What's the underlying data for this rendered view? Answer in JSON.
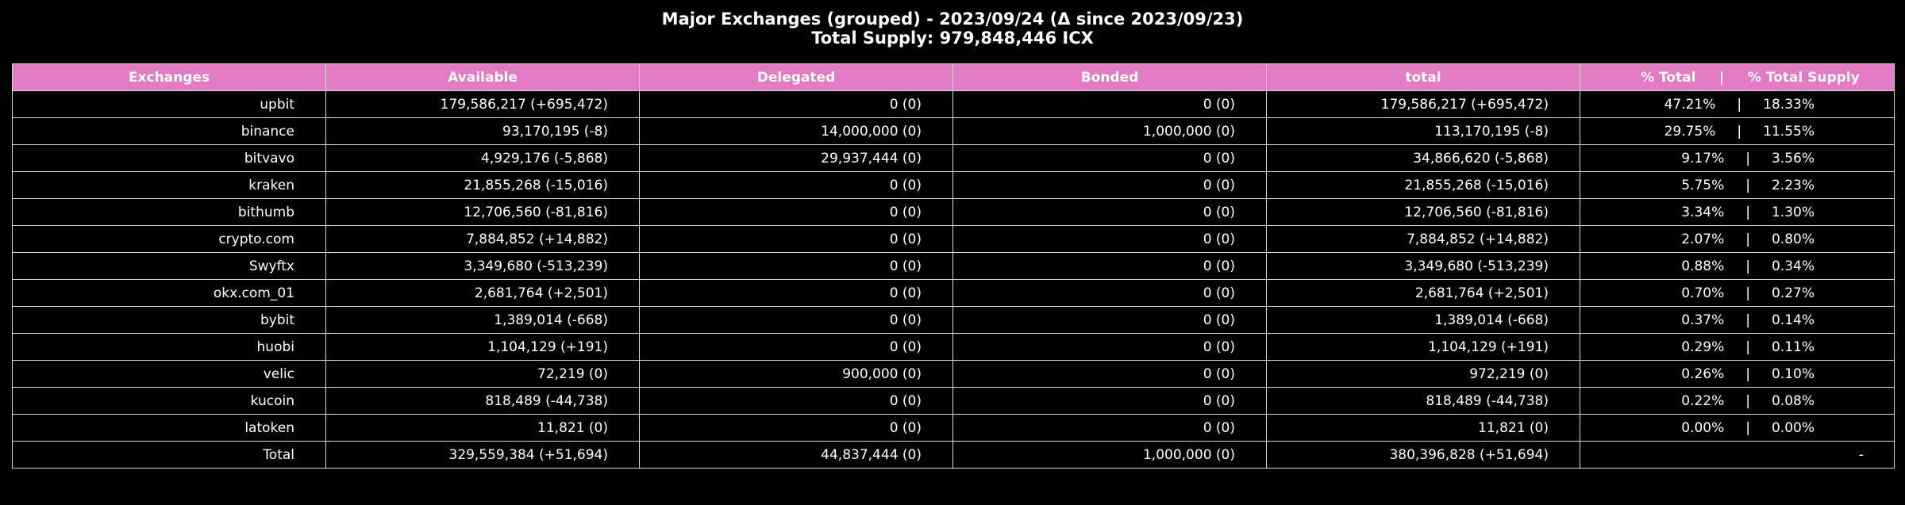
{
  "title": {
    "line1": "Major Exchanges (grouped) - 2023/09/24 (Δ since 2023/09/23)",
    "line2": "Total Supply: 979,848,446 ICX"
  },
  "colors": {
    "header_background": "#e37ac4",
    "background": "#000000",
    "text": "#ffffff",
    "grid_lines": "#d9d9d9"
  },
  "table": {
    "headers": {
      "exchanges": "Exchanges",
      "available": "Available",
      "delegated": "Delegated",
      "bonded": "Bonded",
      "total": "total",
      "percent": "% Total     |     % Total Supply"
    },
    "rows": [
      {
        "exchange": "upbit",
        "available": "179,586,217 (+695,472)",
        "delegated": "0 (0)",
        "bonded": "0 (0)",
        "total": "179,586,217 (+695,472)",
        "percent": "47.21%     |     18.33%"
      },
      {
        "exchange": "binance",
        "available": "93,170,195 (-8)",
        "delegated": "14,000,000 (0)",
        "bonded": "1,000,000 (0)",
        "total": "113,170,195 (-8)",
        "percent": "29.75%     |     11.55%"
      },
      {
        "exchange": "bitvavo",
        "available": "4,929,176 (-5,868)",
        "delegated": "29,937,444 (0)",
        "bonded": "0 (0)",
        "total": "34,866,620 (-5,868)",
        "percent": "9.17%     |     3.56%"
      },
      {
        "exchange": "kraken",
        "available": "21,855,268 (-15,016)",
        "delegated": "0 (0)",
        "bonded": "0 (0)",
        "total": "21,855,268 (-15,016)",
        "percent": "5.75%     |     2.23%"
      },
      {
        "exchange": "bithumb",
        "available": "12,706,560 (-81,816)",
        "delegated": "0 (0)",
        "bonded": "0 (0)",
        "total": "12,706,560 (-81,816)",
        "percent": "3.34%     |     1.30%"
      },
      {
        "exchange": "crypto.com",
        "available": "7,884,852 (+14,882)",
        "delegated": "0 (0)",
        "bonded": "0 (0)",
        "total": "7,884,852 (+14,882)",
        "percent": "2.07%     |     0.80%"
      },
      {
        "exchange": "Swyftx",
        "available": "3,349,680 (-513,239)",
        "delegated": "0 (0)",
        "bonded": "0 (0)",
        "total": "3,349,680 (-513,239)",
        "percent": "0.88%     |     0.34%"
      },
      {
        "exchange": "okx.com_01",
        "available": "2,681,764 (+2,501)",
        "delegated": "0 (0)",
        "bonded": "0 (0)",
        "total": "2,681,764 (+2,501)",
        "percent": "0.70%     |     0.27%"
      },
      {
        "exchange": "bybit",
        "available": "1,389,014 (-668)",
        "delegated": "0 (0)",
        "bonded": "0 (0)",
        "total": "1,389,014 (-668)",
        "percent": "0.37%     |     0.14%"
      },
      {
        "exchange": "huobi",
        "available": "1,104,129 (+191)",
        "delegated": "0 (0)",
        "bonded": "0 (0)",
        "total": "1,104,129 (+191)",
        "percent": "0.29%     |     0.11%"
      },
      {
        "exchange": "velic",
        "available": "72,219 (0)",
        "delegated": "900,000 (0)",
        "bonded": "0 (0)",
        "total": "972,219 (0)",
        "percent": "0.26%     |     0.10%"
      },
      {
        "exchange": "kucoin",
        "available": "818,489 (-44,738)",
        "delegated": "0 (0)",
        "bonded": "0 (0)",
        "total": "818,489 (-44,738)",
        "percent": "0.22%     |     0.08%"
      },
      {
        "exchange": "latoken",
        "available": "11,821 (0)",
        "delegated": "0 (0)",
        "bonded": "0 (0)",
        "total": "11,821 (0)",
        "percent": "0.00%     |     0.00%"
      }
    ],
    "total_row": {
      "exchange": "Total",
      "available": "329,559,384 (+51,694)",
      "delegated": "44,837,444 (0)",
      "bonded": "1,000,000 (0)",
      "total": "380,396,828 (+51,694)",
      "percent": "-"
    }
  }
}
